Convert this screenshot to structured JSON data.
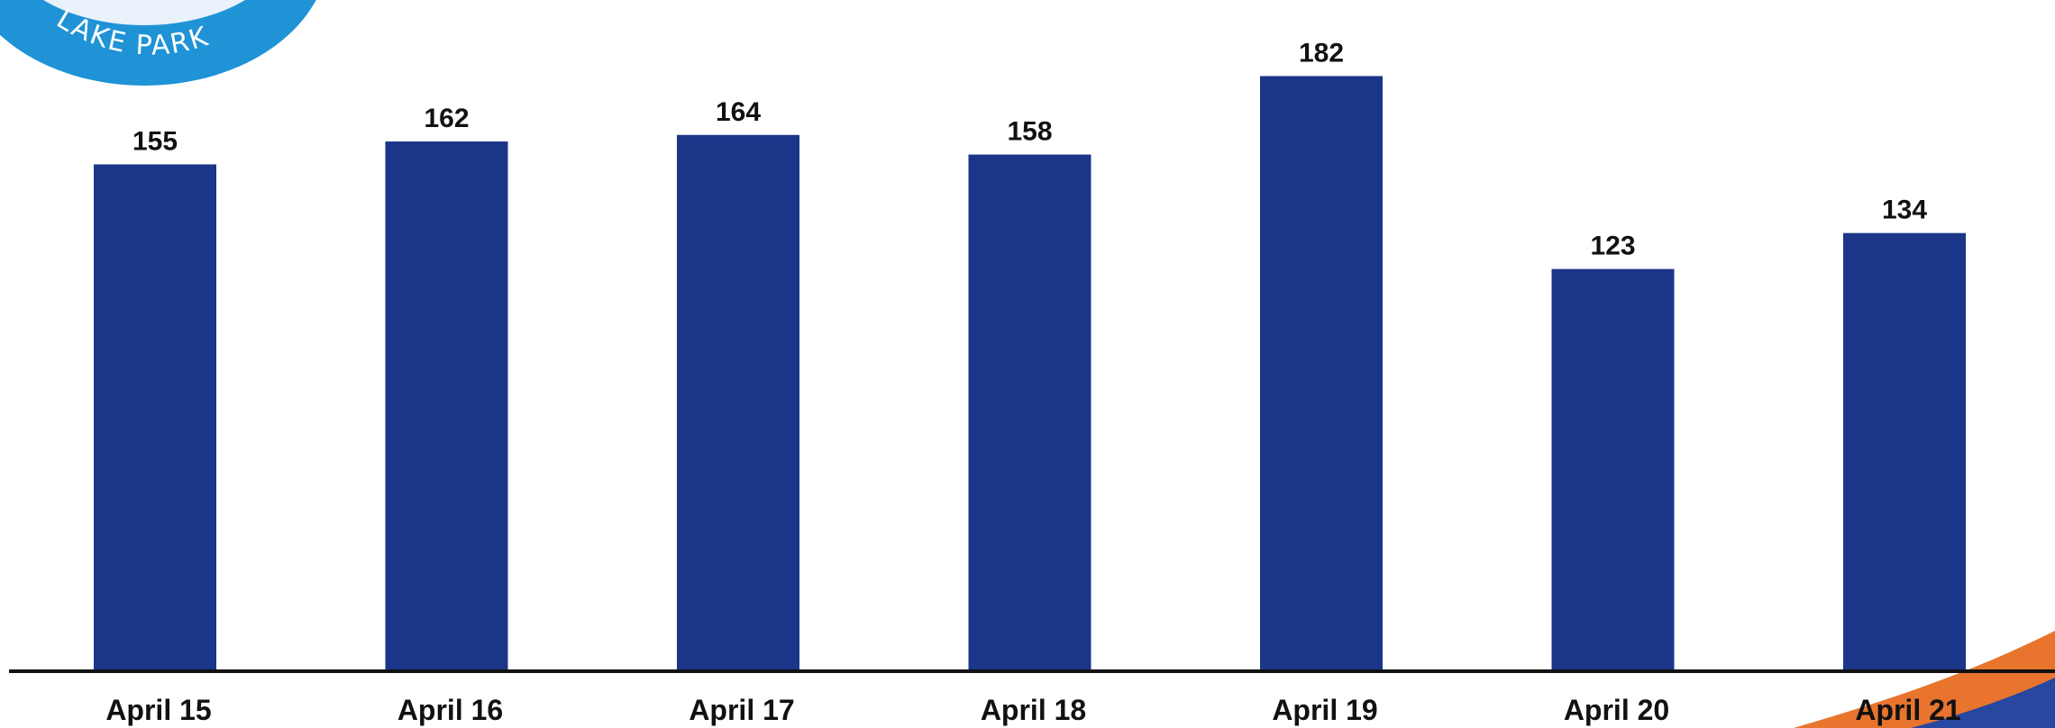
{
  "logo": {
    "text": "LAKE PARK",
    "ring_color": "#1f93d6",
    "inner_color": "#e9f2fb"
  },
  "colors": {
    "bar": "#1b3589",
    "axis": "#111111",
    "corner_accent_orange": "#e8742e",
    "corner_accent_blue": "#2747a0"
  },
  "chart_data": {
    "type": "bar",
    "categories": [
      "April 15",
      "April 16",
      "April 17",
      "April 18",
      "April 19",
      "April 20",
      "April 21"
    ],
    "values": [
      155,
      162,
      164,
      158,
      182,
      123,
      134
    ],
    "data_labels": [
      "155",
      "162",
      "164",
      "158",
      "182",
      "123",
      "134"
    ],
    "title": "",
    "xlabel": "",
    "ylabel": "",
    "ylim": [
      0,
      197
    ],
    "grid": false,
    "legend": "none"
  }
}
